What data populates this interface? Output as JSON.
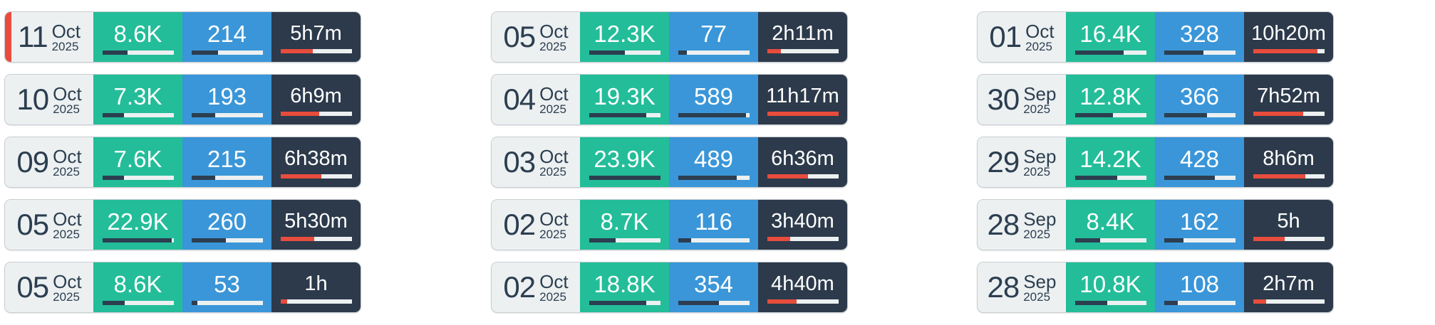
{
  "colors": {
    "views": "#23bd99",
    "count": "#3a96d8",
    "duration": "#2c3a4b",
    "date_bg": "#ecf0f1",
    "bar_fill": "#2c3e50",
    "duration_fill": "#e74c3c",
    "active_marker": "#e74c3c"
  },
  "columns": [
    [
      {
        "day": "11",
        "month": "Oct",
        "year": "2025",
        "views": "8.6K",
        "views_fill": 0.35,
        "count": "214",
        "count_fill": 0.37,
        "duration": "5h7m",
        "duration_fill": 0.45,
        "active": true
      },
      {
        "day": "10",
        "month": "Oct",
        "year": "2025",
        "views": "7.3K",
        "views_fill": 0.3,
        "count": "193",
        "count_fill": 0.33,
        "duration": "6h9m",
        "duration_fill": 0.54
      },
      {
        "day": "09",
        "month": "Oct",
        "year": "2025",
        "views": "7.6K",
        "views_fill": 0.3,
        "count": "215",
        "count_fill": 0.33,
        "duration": "6h38m",
        "duration_fill": 0.57
      },
      {
        "day": "05",
        "month": "Oct",
        "year": "2025",
        "views": "22.9K",
        "views_fill": 0.97,
        "count": "260",
        "count_fill": 0.48,
        "duration": "5h30m",
        "duration_fill": 0.47
      },
      {
        "day": "05",
        "month": "Oct",
        "year": "2025",
        "views": "8.6K",
        "views_fill": 0.31,
        "count": "53",
        "count_fill": 0.08,
        "duration": "1h",
        "duration_fill": 0.09
      }
    ],
    [
      {
        "day": "05",
        "month": "Oct",
        "year": "2025",
        "views": "12.3K",
        "views_fill": 0.5,
        "count": "77",
        "count_fill": 0.12,
        "duration": "2h11m",
        "duration_fill": 0.19
      },
      {
        "day": "04",
        "month": "Oct",
        "year": "2025",
        "views": "19.3K",
        "views_fill": 0.8,
        "count": "589",
        "count_fill": 0.95,
        "duration": "11h17m",
        "duration_fill": 1.0
      },
      {
        "day": "03",
        "month": "Oct",
        "year": "2025",
        "views": "23.9K",
        "views_fill": 1.0,
        "count": "489",
        "count_fill": 0.82,
        "duration": "6h36m",
        "duration_fill": 0.57
      },
      {
        "day": "02",
        "month": "Oct",
        "year": "2025",
        "views": "8.7K",
        "views_fill": 0.37,
        "count": "116",
        "count_fill": 0.18,
        "duration": "3h40m",
        "duration_fill": 0.32
      },
      {
        "day": "02",
        "month": "Oct",
        "year": "2025",
        "views": "18.8K",
        "views_fill": 0.8,
        "count": "354",
        "count_fill": 0.57,
        "duration": "4h40m",
        "duration_fill": 0.41
      }
    ],
    [
      {
        "day": "01",
        "month": "Oct",
        "year": "2025",
        "views": "16.4K",
        "views_fill": 0.68,
        "count": "328",
        "count_fill": 0.55,
        "duration": "10h20m",
        "duration_fill": 0.9
      },
      {
        "day": "30",
        "month": "Sep",
        "year": "2025",
        "views": "12.8K",
        "views_fill": 0.53,
        "count": "366",
        "count_fill": 0.6,
        "duration": "7h52m",
        "duration_fill": 0.7
      },
      {
        "day": "29",
        "month": "Sep",
        "year": "2025",
        "views": "14.2K",
        "views_fill": 0.59,
        "count": "428",
        "count_fill": 0.71,
        "duration": "8h6m",
        "duration_fill": 0.73
      },
      {
        "day": "28",
        "month": "Sep",
        "year": "2025",
        "views": "8.4K",
        "views_fill": 0.35,
        "count": "162",
        "count_fill": 0.27,
        "duration": "5h",
        "duration_fill": 0.44
      },
      {
        "day": "28",
        "month": "Sep",
        "year": "2025",
        "views": "10.8K",
        "views_fill": 0.45,
        "count": "108",
        "count_fill": 0.19,
        "duration": "2h7m",
        "duration_fill": 0.18
      }
    ]
  ]
}
